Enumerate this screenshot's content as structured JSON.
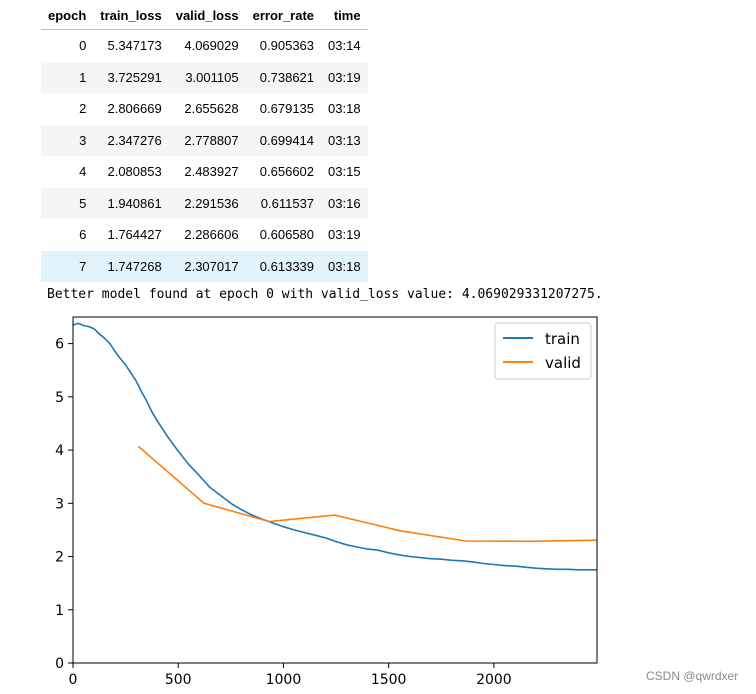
{
  "table": {
    "headers": [
      "epoch",
      "train_loss",
      "valid_loss",
      "error_rate",
      "time"
    ],
    "rows": [
      [
        "0",
        "5.347173",
        "4.069029",
        "0.905363",
        "03:14"
      ],
      [
        "1",
        "3.725291",
        "3.001105",
        "0.738621",
        "03:19"
      ],
      [
        "2",
        "2.806669",
        "2.655628",
        "0.679135",
        "03:18"
      ],
      [
        "3",
        "2.347276",
        "2.778807",
        "0.699414",
        "03:13"
      ],
      [
        "4",
        "2.080853",
        "2.483927",
        "0.656602",
        "03:15"
      ],
      [
        "5",
        "1.940861",
        "2.291536",
        "0.611537",
        "03:16"
      ],
      [
        "6",
        "1.764427",
        "2.286606",
        "0.606580",
        "03:19"
      ],
      [
        "7",
        "1.747268",
        "2.307017",
        "0.613339",
        "03:18"
      ]
    ]
  },
  "log_line": "Better model found at epoch 0 with valid_loss value: 4.069029331207275.",
  "chart_data": {
    "type": "line",
    "xlim": [
      0,
      2490
    ],
    "ylim": [
      0,
      6.5
    ],
    "xticks": [
      0,
      500,
      1000,
      1500,
      2000
    ],
    "yticks": [
      0,
      1,
      2,
      3,
      4,
      5,
      6
    ],
    "legend_position": "upper right",
    "series": [
      {
        "name": "train",
        "color": "#1f77b4",
        "x": [
          0,
          25,
          50,
          75,
          100,
          125,
          150,
          175,
          200,
          225,
          250,
          275,
          300,
          325,
          350,
          375,
          400,
          450,
          500,
          550,
          600,
          650,
          700,
          750,
          800,
          850,
          900,
          950,
          1000,
          1050,
          1100,
          1150,
          1200,
          1250,
          1300,
          1350,
          1400,
          1450,
          1500,
          1550,
          1600,
          1650,
          1700,
          1750,
          1800,
          1850,
          1900,
          1950,
          2000,
          2050,
          2100,
          2150,
          2200,
          2250,
          2300,
          2350,
          2400,
          2450,
          2490
        ],
        "y": [
          6.35,
          6.38,
          6.34,
          6.32,
          6.28,
          6.18,
          6.1,
          6.0,
          5.85,
          5.72,
          5.6,
          5.45,
          5.3,
          5.1,
          4.92,
          4.72,
          4.55,
          4.25,
          3.98,
          3.73,
          3.52,
          3.3,
          3.15,
          3.0,
          2.88,
          2.78,
          2.7,
          2.63,
          2.56,
          2.5,
          2.45,
          2.4,
          2.35,
          2.28,
          2.22,
          2.18,
          2.14,
          2.12,
          2.07,
          2.03,
          2.0,
          1.98,
          1.96,
          1.95,
          1.93,
          1.92,
          1.9,
          1.87,
          1.85,
          1.83,
          1.82,
          1.8,
          1.78,
          1.77,
          1.76,
          1.76,
          1.75,
          1.75,
          1.75
        ]
      },
      {
        "name": "valid",
        "color": "#ff7f0e",
        "x": [
          311,
          622,
          933,
          1244,
          1555,
          1866,
          2177,
          2488
        ],
        "y": [
          4.069029,
          3.001105,
          2.655628,
          2.778807,
          2.483927,
          2.291536,
          2.286606,
          2.307017
        ]
      }
    ]
  },
  "watermark": "CSDN @qwrdxer"
}
